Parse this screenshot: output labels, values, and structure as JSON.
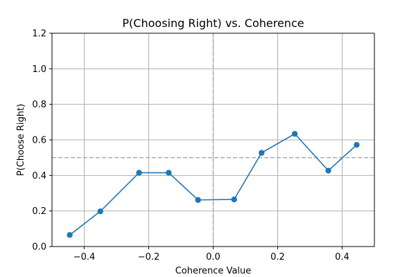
{
  "chart_data": {
    "type": "line",
    "title": "P(Choosing Right) vs. Coherence",
    "xlabel": "Coherence Value",
    "ylabel": "P(Choose Right)",
    "xlim": [
      -0.5,
      0.5
    ],
    "ylim": [
      0.0,
      1.2
    ],
    "xticks": [
      -0.4,
      -0.2,
      0.0,
      0.2,
      0.4
    ],
    "xtick_labels": [
      "−0.4",
      "−0.2",
      "0.0",
      "0.2",
      "0.4"
    ],
    "yticks": [
      0.0,
      0.2,
      0.4,
      0.6,
      0.8,
      1.0,
      1.2
    ],
    "ytick_labels": [
      "0.0",
      "0.2",
      "0.4",
      "0.6",
      "0.8",
      "1.0",
      "1.2"
    ],
    "grid": true,
    "series": [
      {
        "color": "#1f77b4",
        "marker": "circle",
        "x": [
          -0.445,
          -0.35,
          -0.23,
          -0.138,
          -0.047,
          0.065,
          0.15,
          0.253,
          0.357,
          0.445
        ],
        "y": [
          0.065,
          0.198,
          0.415,
          0.415,
          0.262,
          0.265,
          0.527,
          0.634,
          0.427,
          0.572
        ]
      }
    ],
    "reference_lines": [
      {
        "orientation": "horizontal",
        "value": 0.5,
        "style": "dashed",
        "color": "#aaaaaa"
      },
      {
        "orientation": "vertical",
        "value": 0.0,
        "style": "dashed",
        "color": "#aaaaaa"
      }
    ]
  }
}
